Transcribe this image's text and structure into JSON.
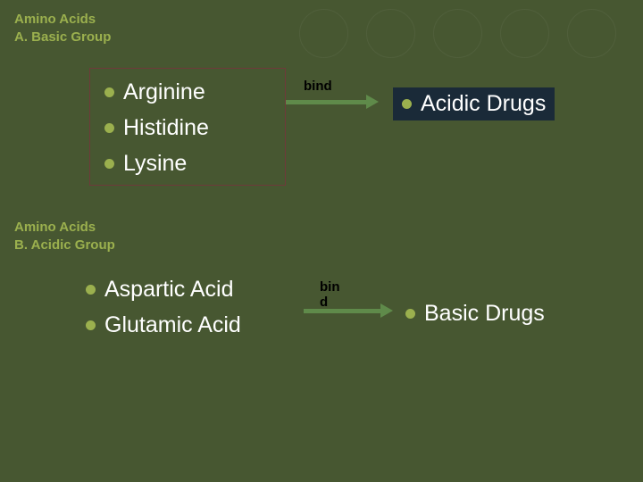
{
  "background_color": "#475731",
  "bullet_color": "#9bb04e",
  "header_color": "#9bb04e",
  "text_color": "#ffffff",
  "arrow_color": "#5f8a4a",
  "box_border_color": "#6e3a3a",
  "result_box_bg": "#1a2a38",
  "font_family": "Arial, sans-serif",
  "title_fontsize": 15,
  "item_fontsize": 25,
  "bind_label_fontsize": 15,
  "headerA": {
    "line1": "Amino Acids",
    "line2": "A. Basic Group"
  },
  "basicGroup": {
    "items": [
      "Arginine",
      "Histidine",
      "Lysine"
    ]
  },
  "bindA": "bind",
  "resultA": "Acidic Drugs",
  "headerB": {
    "line1": "Amino Acids",
    "line2": "B. Acidic Group"
  },
  "acidicGroup": {
    "items": [
      "Aspartic Acid",
      "Glutamic Acid"
    ]
  },
  "bindB": "bin d",
  "resultB": "Basic Drugs",
  "deco_circles_count": 5
}
